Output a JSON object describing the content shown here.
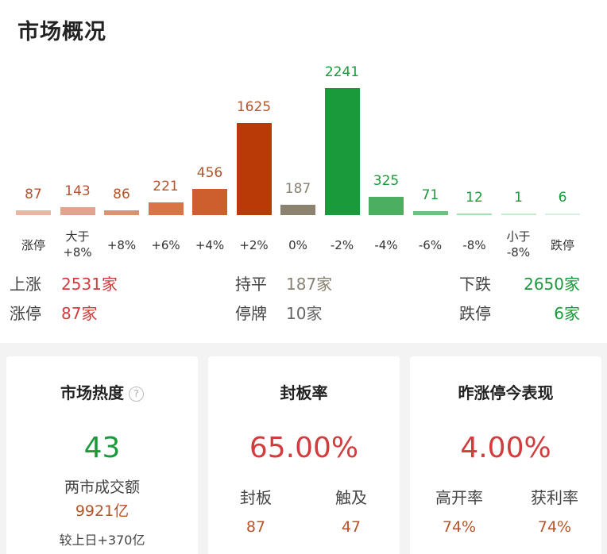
{
  "header": {
    "title": "市场概况"
  },
  "chart_data": {
    "type": "bar",
    "categories": [
      "涨停",
      "大于+8%",
      "+8%",
      "+6%",
      "+4%",
      "+2%",
      "0%",
      "-2%",
      "-4%",
      "-6%",
      "-8%",
      "小于-8%",
      "跌停"
    ],
    "label_lines": [
      [
        "涨停"
      ],
      [
        "大于",
        "+8%"
      ],
      [
        "+8%"
      ],
      [
        "+6%"
      ],
      [
        "+4%"
      ],
      [
        "+2%"
      ],
      [
        "0%"
      ],
      [
        "-2%"
      ],
      [
        "-4%"
      ],
      [
        "-6%"
      ],
      [
        "-8%"
      ],
      [
        "小于",
        "-8%"
      ],
      [
        "跌停"
      ]
    ],
    "values": [
      87,
      143,
      86,
      221,
      456,
      1625,
      187,
      2241,
      325,
      71,
      12,
      1,
      6
    ],
    "colors": [
      "#e8b7a4",
      "#e0a58c",
      "#db9271",
      "#d87446",
      "#cd5e2e",
      "#b83a06",
      "#8c8270",
      "#1a9a3a",
      "#4caf5f",
      "#6fc07f",
      "#a8dcb2",
      "#c8ecd0",
      "#d8f0dc"
    ],
    "value_colors": [
      "#b5542b",
      "#b5542b",
      "#b5542b",
      "#b5542b",
      "#b5542b",
      "#b5542b",
      "#8a8272",
      "#1a9a3a",
      "#1a9a3a",
      "#1a9a3a",
      "#1a9a3a",
      "#1a9a3a",
      "#1a9a3a"
    ]
  },
  "stats": {
    "rise": {
      "label": "上涨",
      "value": "2531家"
    },
    "limit_up": {
      "label": "涨停",
      "value": "87家"
    },
    "flat": {
      "label": "持平",
      "value": "187家"
    },
    "suspended": {
      "label": "停牌",
      "value": "10家"
    },
    "fall": {
      "label": "下跌",
      "value": "2650家"
    },
    "limit_down": {
      "label": "跌停",
      "value": "6家"
    }
  },
  "cards": {
    "heat": {
      "title": "市场热度",
      "help_icon": "?",
      "value": "43",
      "turnover_label": "两市成交额",
      "turnover_value": "9921亿",
      "compare": "较上日+370亿"
    },
    "seal": {
      "title": "封板率",
      "value": "65.00%",
      "left_label": "封板",
      "left_value": "87",
      "right_label": "触及",
      "right_value": "47"
    },
    "yesterday": {
      "title": "昨涨停今表现",
      "value": "4.00%",
      "left_label": "高开率",
      "left_value": "74%",
      "right_label": "获利率",
      "right_value": "74%"
    }
  },
  "colors": {
    "red": "#d23c3c",
    "green": "#1a9a3a",
    "gray": "#8a8272"
  }
}
